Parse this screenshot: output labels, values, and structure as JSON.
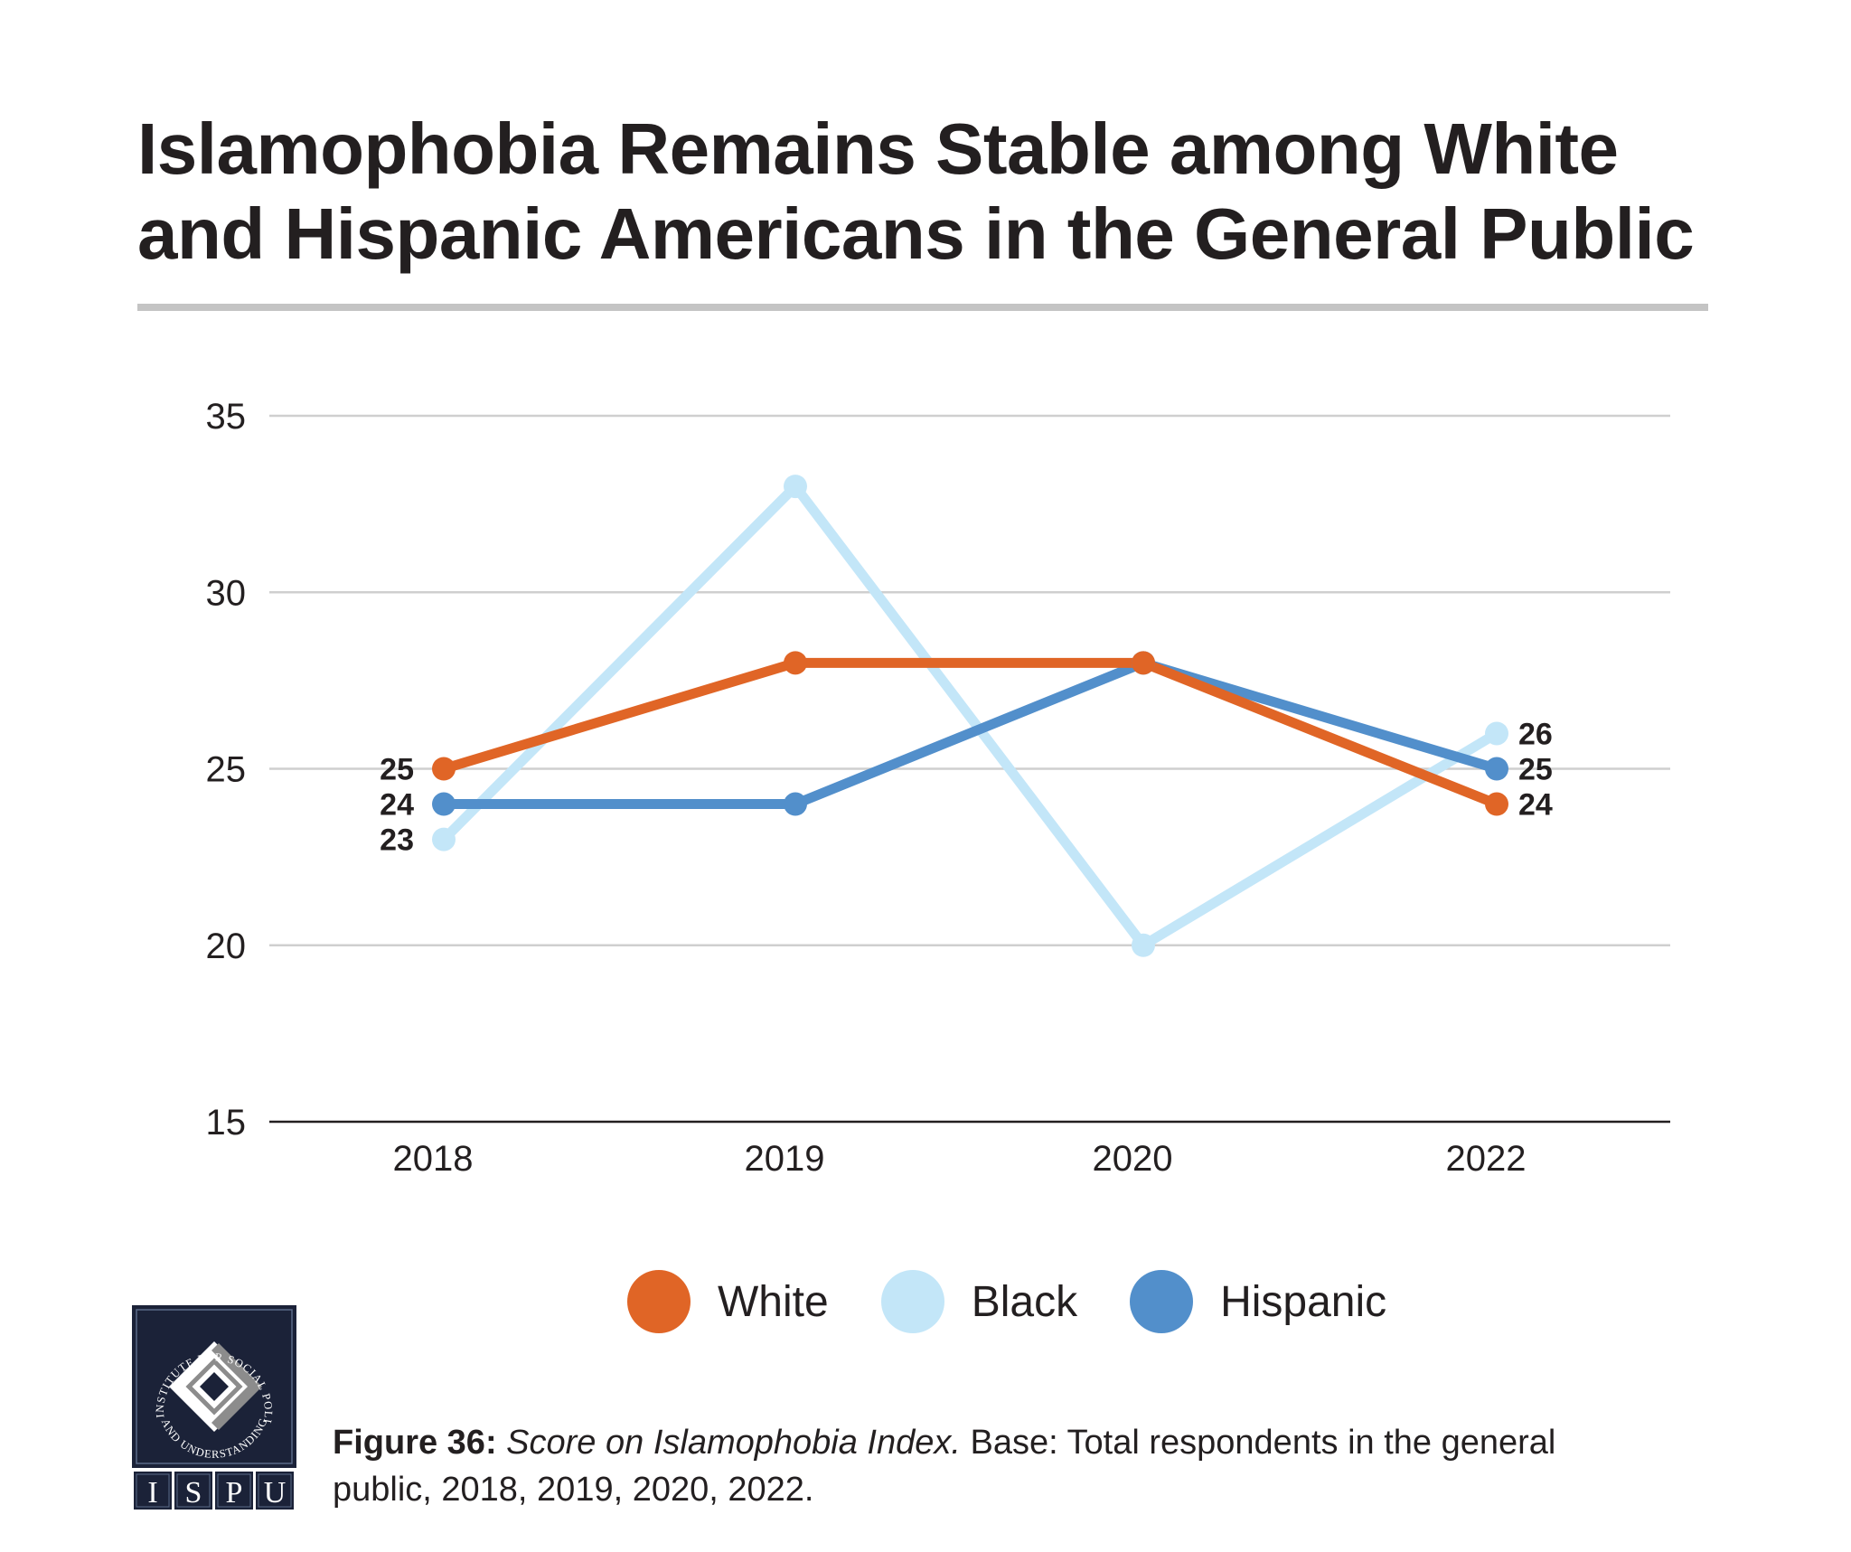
{
  "title_lines": [
    "Islamophobia Remains Stable among White",
    "and Hispanic Americans in the General Public"
  ],
  "chart_data": {
    "type": "line",
    "title": "Islamophobia Remains Stable among White and Hispanic Americans in the General Public",
    "xlabel": "",
    "ylabel": "",
    "x": [
      "2018",
      "2019",
      "2020",
      "2022"
    ],
    "ylim": [
      15,
      35
    ],
    "yticks": [
      15,
      20,
      25,
      30,
      35
    ],
    "grid": true,
    "legend_position": "bottom-center",
    "series": [
      {
        "name": "White",
        "color": "#E06526",
        "values": [
          25,
          28,
          28,
          24
        ]
      },
      {
        "name": "Black",
        "color": "#C3E6F8",
        "values": [
          23,
          33,
          20,
          26
        ]
      },
      {
        "name": "Hispanic",
        "color": "#528FCB",
        "values": [
          24,
          24,
          28,
          25
        ]
      }
    ],
    "data_labels": {
      "2018": [
        {
          "series": "White",
          "text": "25"
        },
        {
          "series": "Hispanic",
          "text": "24"
        },
        {
          "series": "Black",
          "text": "23"
        }
      ],
      "2022": [
        {
          "series": "Black",
          "text": "26"
        },
        {
          "series": "Hispanic",
          "text": "25"
        },
        {
          "series": "White",
          "text": "24"
        }
      ]
    }
  },
  "legend": [
    {
      "label": "White",
      "color": "#E06526"
    },
    {
      "label": "Black",
      "color": "#C3E6F8"
    },
    {
      "label": "Hispanic",
      "color": "#528FCB"
    }
  ],
  "caption": {
    "figure": "Figure 36:",
    "italic": " Score on Islamophobia Index.",
    "rest_line1": " Base: Total respondents in the general",
    "rest_line2": "public, 2018, 2019, 2020, 2022."
  },
  "logo": {
    "arc_text": "INSTITUTE FOR SOCIAL POLICY AND UNDERSTANDING",
    "letters": [
      "I",
      "S",
      "P",
      "U"
    ],
    "navy": "#1B2238"
  }
}
